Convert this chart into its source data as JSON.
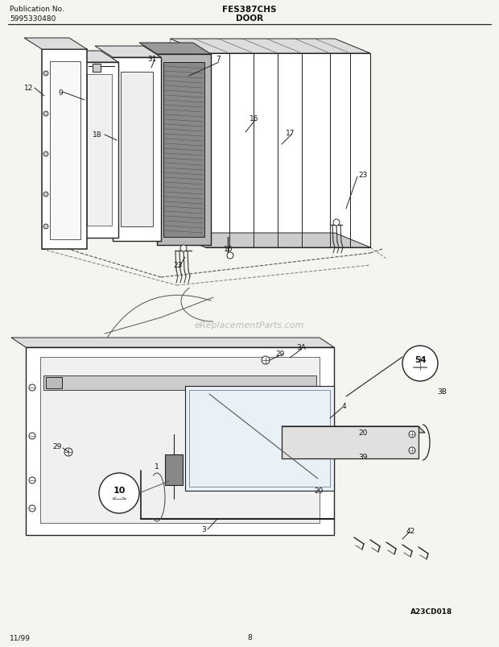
{
  "title_left_line1": "Publication No.",
  "title_left_line2": "5995330480",
  "title_center_line1": "FES387CHS",
  "title_center_line2": "DOOR",
  "footer_left": "11/99",
  "footer_center": "8",
  "footer_right": "A23CD018",
  "watermark": "eReplacementParts.com",
  "bg_color": "#f5f5f0",
  "line_color": "#222222",
  "text_color": "#111111"
}
